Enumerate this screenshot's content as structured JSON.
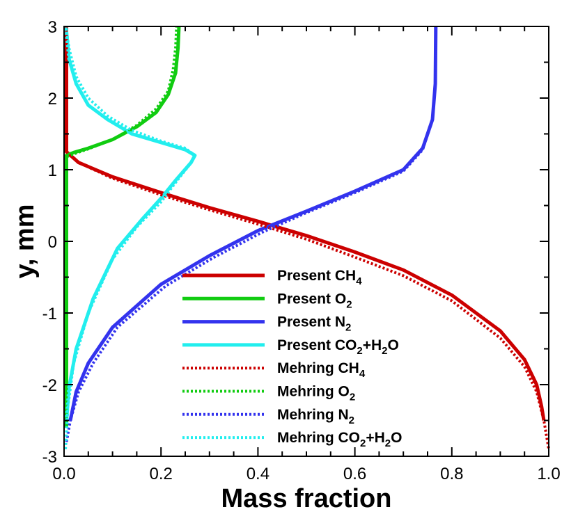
{
  "chart_data": {
    "type": "line",
    "xlabel": "Mass fraction",
    "ylabel": "y, mm",
    "xlim": [
      0.0,
      1.0
    ],
    "ylim": [
      -3,
      3
    ],
    "x_ticks": [
      "0.0",
      "0.2",
      "0.4",
      "0.6",
      "0.8",
      "1.0"
    ],
    "y_ticks": [
      "-3",
      "-2",
      "-1",
      "0",
      "1",
      "2",
      "3"
    ],
    "grid": false,
    "legend_position": "lower-center",
    "series": [
      {
        "name": "Present CH4",
        "label_parts": [
          [
            "Present CH",
            ""
          ],
          [
            "4",
            "sub"
          ]
        ],
        "color": "#cc0000",
        "style": "solid",
        "points": [
          [
            0.005,
            3.0
          ],
          [
            0.005,
            1.25
          ],
          [
            0.03,
            1.1
          ],
          [
            0.1,
            0.9
          ],
          [
            0.2,
            0.68
          ],
          [
            0.3,
            0.47
          ],
          [
            0.4,
            0.28
          ],
          [
            0.5,
            0.08
          ],
          [
            0.6,
            -0.15
          ],
          [
            0.7,
            -0.4
          ],
          [
            0.8,
            -0.75
          ],
          [
            0.9,
            -1.25
          ],
          [
            0.95,
            -1.65
          ],
          [
            0.975,
            -2.0
          ],
          [
            0.985,
            -2.3
          ],
          [
            0.99,
            -2.5
          ]
        ]
      },
      {
        "name": "Present O2",
        "label_parts": [
          [
            "Present O",
            ""
          ],
          [
            "2",
            "sub"
          ]
        ],
        "color": "#11cc11",
        "style": "solid",
        "points": [
          [
            0.005,
            -2.6
          ],
          [
            0.005,
            1.2
          ],
          [
            0.02,
            1.24
          ],
          [
            0.05,
            1.3
          ],
          [
            0.1,
            1.42
          ],
          [
            0.15,
            1.6
          ],
          [
            0.19,
            1.8
          ],
          [
            0.215,
            2.05
          ],
          [
            0.23,
            2.35
          ],
          [
            0.235,
            2.7
          ],
          [
            0.237,
            3.0
          ]
        ]
      },
      {
        "name": "Present N2",
        "label_parts": [
          [
            "Present N",
            ""
          ],
          [
            "2",
            "sub"
          ]
        ],
        "color": "#3333ee",
        "style": "solid",
        "points": [
          [
            0.013,
            -2.5
          ],
          [
            0.025,
            -2.1
          ],
          [
            0.05,
            -1.7
          ],
          [
            0.1,
            -1.2
          ],
          [
            0.2,
            -0.6
          ],
          [
            0.3,
            -0.2
          ],
          [
            0.4,
            0.15
          ],
          [
            0.5,
            0.42
          ],
          [
            0.6,
            0.7
          ],
          [
            0.7,
            1.0
          ],
          [
            0.74,
            1.3
          ],
          [
            0.76,
            1.7
          ],
          [
            0.766,
            2.2
          ],
          [
            0.767,
            3.0
          ]
        ]
      },
      {
        "name": "Present CO2+H2O",
        "label_parts": [
          [
            "Present CO",
            ""
          ],
          [
            "2",
            "sub"
          ],
          [
            "+H",
            ""
          ],
          [
            "2",
            "sub"
          ],
          [
            "O",
            ""
          ]
        ],
        "color": "#22eeee",
        "style": "solid",
        "points": [
          [
            0.005,
            -2.5
          ],
          [
            0.01,
            -2.05
          ],
          [
            0.025,
            -1.5
          ],
          [
            0.06,
            -0.8
          ],
          [
            0.11,
            -0.1
          ],
          [
            0.16,
            0.3
          ],
          [
            0.2,
            0.6
          ],
          [
            0.23,
            0.85
          ],
          [
            0.262,
            1.1
          ],
          [
            0.27,
            1.2
          ],
          [
            0.25,
            1.28
          ],
          [
            0.2,
            1.38
          ],
          [
            0.14,
            1.5
          ],
          [
            0.09,
            1.7
          ],
          [
            0.05,
            1.9
          ],
          [
            0.025,
            2.2
          ],
          [
            0.01,
            2.55
          ],
          [
            0.004,
            3.0
          ]
        ]
      },
      {
        "name": "Mehring CH4",
        "label_parts": [
          [
            "Mehring CH",
            ""
          ],
          [
            "4",
            "sub"
          ]
        ],
        "color": "#cc0000",
        "style": "dotted",
        "points": [
          [
            0.005,
            3.0
          ],
          [
            0.005,
            1.25
          ],
          [
            0.03,
            1.1
          ],
          [
            0.1,
            0.88
          ],
          [
            0.2,
            0.65
          ],
          [
            0.3,
            0.44
          ],
          [
            0.4,
            0.24
          ],
          [
            0.5,
            0.03
          ],
          [
            0.6,
            -0.22
          ],
          [
            0.7,
            -0.48
          ],
          [
            0.8,
            -0.83
          ],
          [
            0.9,
            -1.35
          ],
          [
            0.95,
            -1.75
          ],
          [
            0.975,
            -2.1
          ],
          [
            0.99,
            -2.5
          ],
          [
            1.0,
            -2.9
          ]
        ]
      },
      {
        "name": "Mehring O2",
        "label_parts": [
          [
            "Mehring O",
            ""
          ],
          [
            "2",
            "sub"
          ]
        ],
        "color": "#11cc11",
        "style": "dotted",
        "points": [
          [
            0.005,
            -2.6
          ],
          [
            0.005,
            1.18
          ],
          [
            0.02,
            1.22
          ],
          [
            0.05,
            1.29
          ],
          [
            0.1,
            1.42
          ],
          [
            0.15,
            1.62
          ],
          [
            0.19,
            1.85
          ],
          [
            0.215,
            2.1
          ],
          [
            0.225,
            2.4
          ],
          [
            0.23,
            2.7
          ],
          [
            0.232,
            3.0
          ]
        ]
      },
      {
        "name": "Mehring N2",
        "label_parts": [
          [
            "Mehring N",
            ""
          ],
          [
            "2",
            "sub"
          ]
        ],
        "color": "#3333ee",
        "style": "dotted",
        "points": [
          [
            0.005,
            -2.8
          ],
          [
            0.013,
            -2.5
          ],
          [
            0.03,
            -2.1
          ],
          [
            0.06,
            -1.7
          ],
          [
            0.11,
            -1.2
          ],
          [
            0.21,
            -0.62
          ],
          [
            0.31,
            -0.22
          ],
          [
            0.41,
            0.13
          ],
          [
            0.5,
            0.4
          ],
          [
            0.6,
            0.68
          ],
          [
            0.7,
            0.98
          ],
          [
            0.74,
            1.28
          ],
          [
            0.76,
            1.7
          ],
          [
            0.766,
            2.2
          ],
          [
            0.767,
            3.0
          ]
        ]
      },
      {
        "name": "Mehring CO2+H2O",
        "label_parts": [
          [
            "Mehring CO",
            ""
          ],
          [
            "2",
            "sub"
          ],
          [
            "+H",
            ""
          ],
          [
            "2",
            "sub"
          ],
          [
            "O",
            ""
          ]
        ],
        "color": "#22eeee",
        "style": "dotted",
        "points": [
          [
            0.003,
            -2.9
          ],
          [
            0.008,
            -2.3
          ],
          [
            0.02,
            -1.7
          ],
          [
            0.05,
            -1.0
          ],
          [
            0.1,
            -0.25
          ],
          [
            0.15,
            0.2
          ],
          [
            0.2,
            0.55
          ],
          [
            0.23,
            0.82
          ],
          [
            0.26,
            1.08
          ],
          [
            0.27,
            1.2
          ],
          [
            0.25,
            1.3
          ],
          [
            0.2,
            1.4
          ],
          [
            0.14,
            1.55
          ],
          [
            0.09,
            1.75
          ],
          [
            0.05,
            2.0
          ],
          [
            0.025,
            2.3
          ],
          [
            0.01,
            2.7
          ],
          [
            0.004,
            3.0
          ]
        ]
      }
    ]
  }
}
